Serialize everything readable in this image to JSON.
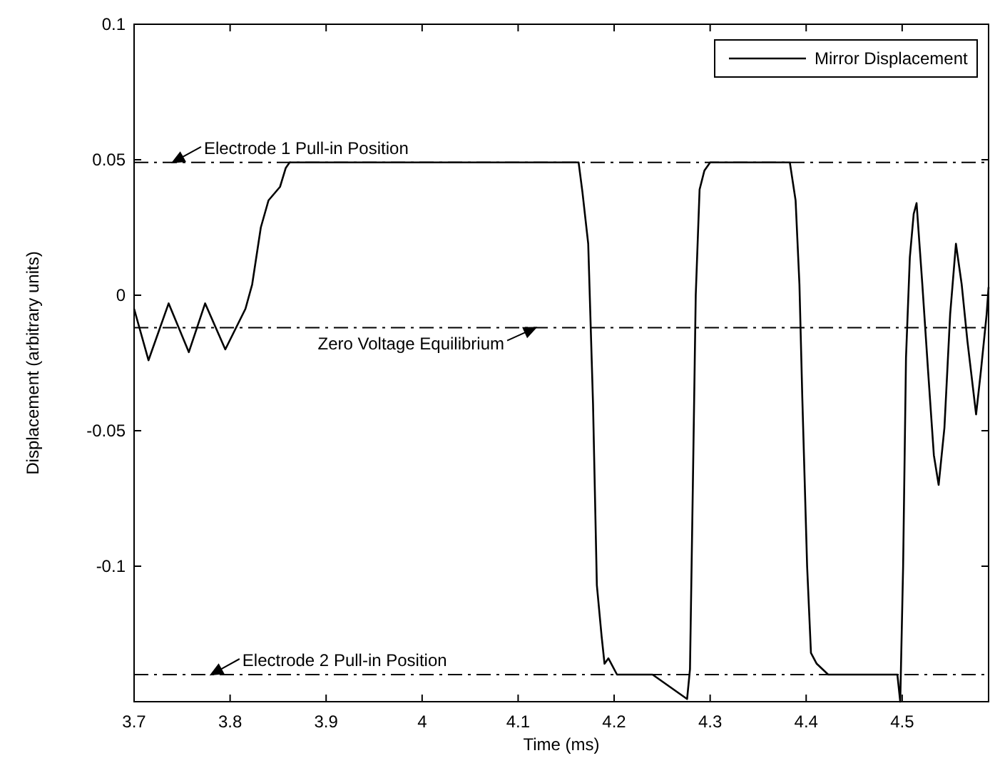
{
  "chart_data": {
    "type": "line",
    "xlabel": "Time (ms)",
    "ylabel": "Displacement (arbitrary units)",
    "xlim": [
      3.7,
      4.59
    ],
    "ylim": [
      -0.15,
      0.1
    ],
    "xticks": [
      3.7,
      3.8,
      3.9,
      4,
      4.1,
      4.2,
      4.3,
      4.4,
      4.5
    ],
    "yticks": [
      {
        "value": -0.15,
        "label": null
      },
      -0.1,
      -0.05,
      0,
      0.05,
      0.1
    ],
    "legend": "top right",
    "grid": false,
    "marker": "none",
    "series": [
      {
        "name": "Mirror Displacement",
        "color": "#000000",
        "x": [
          3.7,
          3.715,
          3.736,
          3.757,
          3.774,
          3.795,
          3.816,
          3.823,
          3.832,
          3.84,
          3.852,
          3.858,
          3.862,
          3.9,
          3.95,
          4.0,
          4.05,
          4.1,
          4.163,
          4.167,
          4.173,
          4.178,
          4.182,
          4.187,
          4.19,
          4.194,
          4.203,
          4.24,
          4.276,
          4.279,
          4.282,
          4.285,
          4.289,
          4.294,
          4.3,
          4.34,
          4.383,
          4.389,
          4.393,
          4.396,
          4.401,
          4.405,
          4.411,
          4.423,
          4.46,
          4.495,
          4.498,
          4.501,
          4.504,
          4.508,
          4.512,
          4.515,
          4.521,
          4.527,
          4.533,
          4.538,
          4.544,
          4.55,
          4.556,
          4.562,
          4.568,
          4.577,
          4.582,
          4.588,
          4.59
        ],
        "values": [
          -0.005,
          -0.024,
          -0.003,
          -0.021,
          -0.003,
          -0.02,
          -0.005,
          0.004,
          0.025,
          0.035,
          0.04,
          0.047,
          0.049,
          0.049,
          0.049,
          0.049,
          0.049,
          0.049,
          0.049,
          0.038,
          0.019,
          -0.04,
          -0.107,
          -0.126,
          -0.136,
          -0.134,
          -0.14,
          -0.14,
          -0.149,
          -0.138,
          -0.07,
          0,
          0.039,
          0.046,
          0.049,
          0.049,
          0.049,
          0.035,
          0.004,
          -0.038,
          -0.1,
          -0.132,
          -0.136,
          -0.14,
          -0.14,
          -0.14,
          -0.15,
          -0.1,
          -0.023,
          0.014,
          0.03,
          0.034,
          0.004,
          -0.028,
          -0.059,
          -0.07,
          -0.049,
          -0.007,
          0.019,
          0.004,
          -0.017,
          -0.044,
          -0.028,
          -0.007,
          0.003
        ]
      }
    ],
    "ref_lines": [
      {
        "axis": "y",
        "value": 0.049,
        "label": "Electrode 1 Pull-in Position",
        "color": "#000000",
        "line_style": "dashed"
      },
      {
        "axis": "y",
        "value": -0.012,
        "label": "Zero Voltage Equilibrium",
        "color": "#000000",
        "line_style": "dashed"
      },
      {
        "axis": "y",
        "value": -0.14,
        "label": "Electrode 2 Pull-in Position",
        "color": "#000000",
        "line_style": "dashed"
      }
    ]
  }
}
